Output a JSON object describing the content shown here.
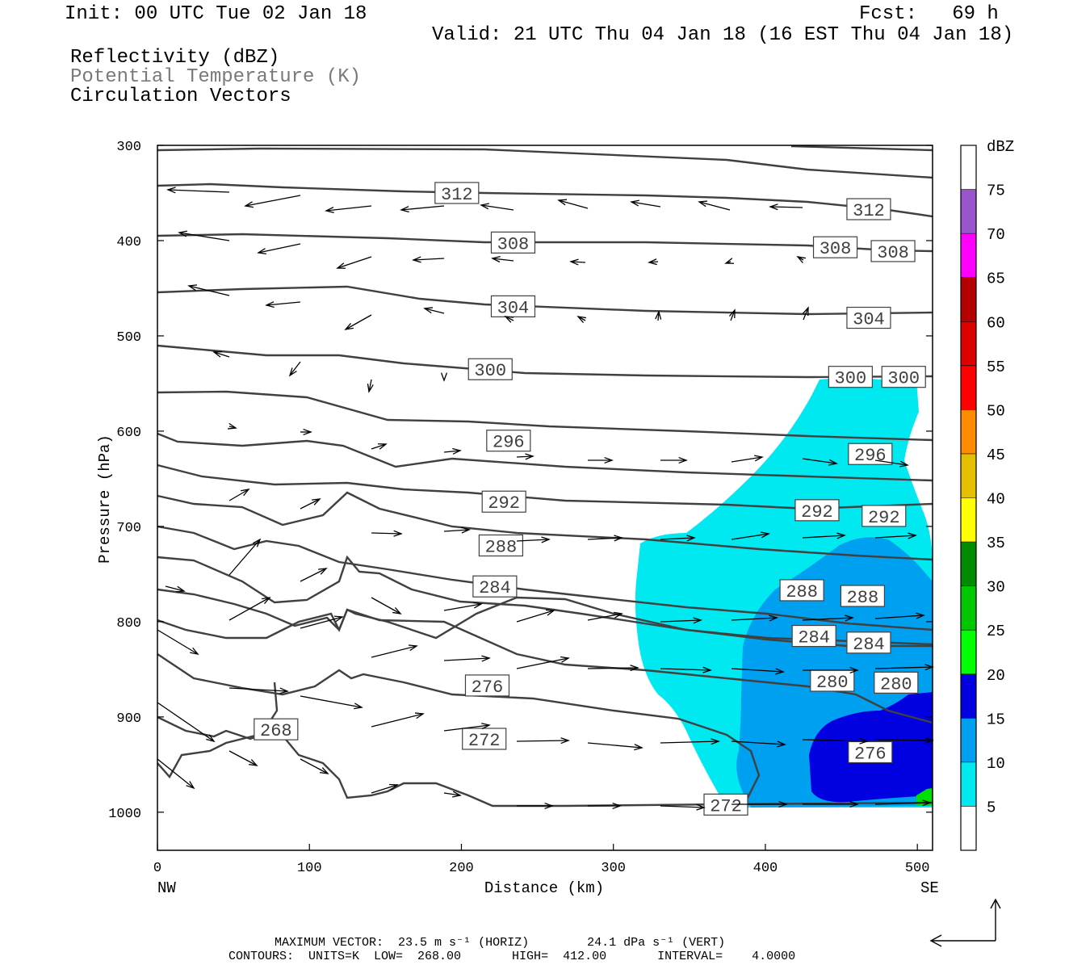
{
  "header": {
    "init": "Init: 00 UTC Tue 02 Jan 18",
    "fcst": "Fcst:   69 h",
    "valid": "Valid: 21 UTC Thu 04 Jan 18 (16 EST Thu 04 Jan 18)",
    "fields": [
      "Reflectivity (dBZ)",
      "Potential Temperature (K)",
      "Circulation Vectors"
    ]
  },
  "footer": {
    "max_vector": "MAXIMUM VECTOR:  23.5 m s⁻¹ (HORIZ)        24.1 dPa s⁻¹ (VERT)",
    "contours": "CONTOURS:  UNITS=K  LOW=  268.00       HIGH=  412.00       INTERVAL=    4.0000"
  },
  "colors": {
    "contour": "#404040",
    "vector": "#000000",
    "field_gray": "#7a7a7a",
    "dbz_5": "#00e8f0",
    "dbz_10": "#00a0f0",
    "dbz_15": "#0000e0",
    "dbz_20": "#00ff00"
  },
  "chart_data": {
    "type": "contour",
    "xlabel": "Distance (km)",
    "ylabel": "Pressure (hPa)",
    "xlim": [
      0,
      510
    ],
    "ylim": [
      1040,
      300
    ],
    "xticks": [
      0,
      100,
      200,
      300,
      400,
      500
    ],
    "yticks": [
      300,
      400,
      500,
      600,
      700,
      800,
      900,
      1000
    ],
    "x_end_labels": {
      "left": "NW",
      "right": "SE"
    },
    "colorbar": {
      "unit": "dBZ",
      "levels": [
        5,
        10,
        15,
        20,
        25,
        30,
        35,
        40,
        45,
        50,
        55,
        60,
        65,
        70,
        75
      ],
      "colors": [
        "#ffffff",
        "#00e8f0",
        "#00a0f0",
        "#0000e0",
        "#00ff00",
        "#00c800",
        "#008c00",
        "#ffff00",
        "#e6be00",
        "#ff8c00",
        "#ff0000",
        "#dc0000",
        "#b40000",
        "#ff00ff",
        "#9955cc",
        "#ffffff"
      ]
    },
    "contour_labels": [
      {
        "value": "312",
        "x": 197,
        "p": 350
      },
      {
        "value": "312",
        "x": 468,
        "p": 367
      },
      {
        "value": "308",
        "x": 234,
        "p": 402
      },
      {
        "value": "308",
        "x": 446,
        "p": 407
      },
      {
        "value": "308",
        "x": 484,
        "p": 411
      },
      {
        "value": "304",
        "x": 234,
        "p": 469
      },
      {
        "value": "304",
        "x": 468,
        "p": 481
      },
      {
        "value": "300",
        "x": 219,
        "p": 535
      },
      {
        "value": "300",
        "x": 456,
        "p": 543
      },
      {
        "value": "300",
        "x": 491,
        "p": 543
      },
      {
        "value": "296",
        "x": 231,
        "p": 610
      },
      {
        "value": "296",
        "x": 469,
        "p": 624
      },
      {
        "value": "292",
        "x": 228,
        "p": 674
      },
      {
        "value": "292",
        "x": 434,
        "p": 683
      },
      {
        "value": "292",
        "x": 478,
        "p": 689
      },
      {
        "value": "288",
        "x": 226,
        "p": 720
      },
      {
        "value": "288",
        "x": 424,
        "p": 767
      },
      {
        "value": "288",
        "x": 464,
        "p": 773
      },
      {
        "value": "284",
        "x": 222,
        "p": 763
      },
      {
        "value": "284",
        "x": 432,
        "p": 815
      },
      {
        "value": "284",
        "x": 468,
        "p": 822
      },
      {
        "value": "280",
        "x": 444,
        "p": 862
      },
      {
        "value": "280",
        "x": 486,
        "p": 864
      },
      {
        "value": "276",
        "x": 217,
        "p": 867
      },
      {
        "value": "276",
        "x": 469,
        "p": 937
      },
      {
        "value": "272",
        "x": 215,
        "p": 923
      },
      {
        "value": "272",
        "x": 374,
        "p": 992
      },
      {
        "value": "268",
        "x": 78,
        "p": 913
      }
    ],
    "max_vector": {
      "horiz_m_s": 23.5,
      "vert_dPa_s": 24.1
    },
    "contours": {
      "units": "K",
      "low": 268.0,
      "high": 412.0,
      "interval": 4.0
    }
  }
}
